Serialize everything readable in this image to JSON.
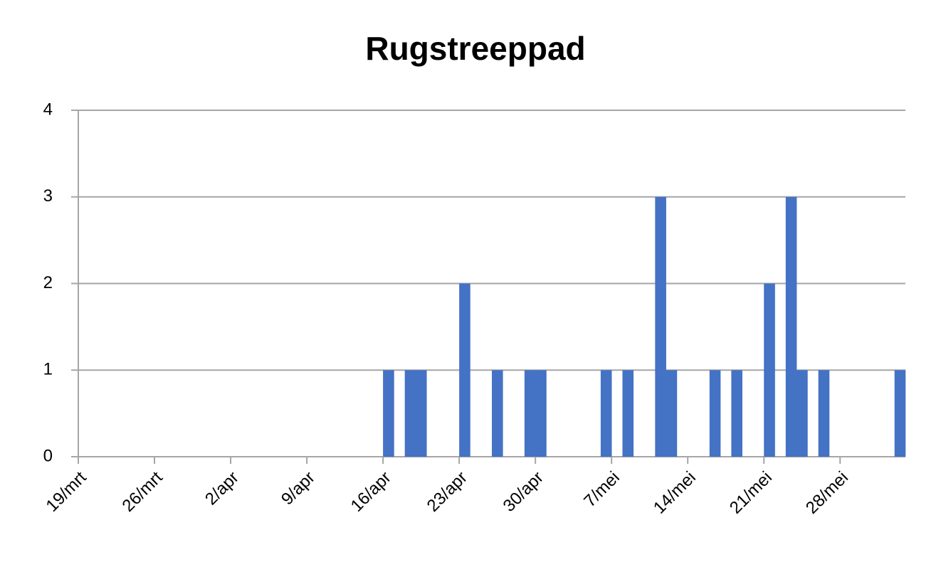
{
  "chart_data": {
    "type": "bar",
    "title": "Rugstreeppad",
    "categories": [
      "19/mrt",
      null,
      null,
      null,
      null,
      null,
      null,
      "26/mrt",
      null,
      null,
      null,
      null,
      null,
      null,
      "2/apr",
      null,
      null,
      null,
      null,
      null,
      null,
      "9/apr",
      null,
      null,
      null,
      null,
      null,
      null,
      "16/apr",
      null,
      null,
      null,
      null,
      null,
      null,
      "23/apr",
      null,
      null,
      null,
      null,
      null,
      null,
      "30/apr",
      null,
      null,
      null,
      null,
      null,
      null,
      "7/mei",
      null,
      null,
      null,
      null,
      null,
      null,
      "14/mei",
      null,
      null,
      null,
      null,
      null,
      null,
      "21/mei",
      null,
      null,
      null,
      null,
      null,
      null,
      "28/mei",
      null,
      null,
      null,
      null,
      null
    ],
    "values": [
      0,
      0,
      0,
      0,
      0,
      0,
      0,
      0,
      0,
      0,
      0,
      0,
      0,
      0,
      0,
      0,
      0,
      0,
      0,
      0,
      0,
      0,
      0,
      0,
      0,
      0,
      0,
      0,
      1,
      0,
      1,
      1,
      0,
      0,
      0,
      2,
      0,
      0,
      1,
      0,
      0,
      1,
      1,
      0,
      0,
      0,
      0,
      0,
      1,
      0,
      1,
      0,
      0,
      3,
      1,
      0,
      0,
      0,
      1,
      0,
      1,
      0,
      0,
      2,
      0,
      3,
      1,
      0,
      1,
      0,
      0,
      0,
      0,
      0,
      0,
      1
    ],
    "color": "#4472c4",
    "ylim": [
      0,
      4
    ],
    "yticks": [
      0,
      1,
      2,
      3,
      4
    ],
    "grid": true
  }
}
